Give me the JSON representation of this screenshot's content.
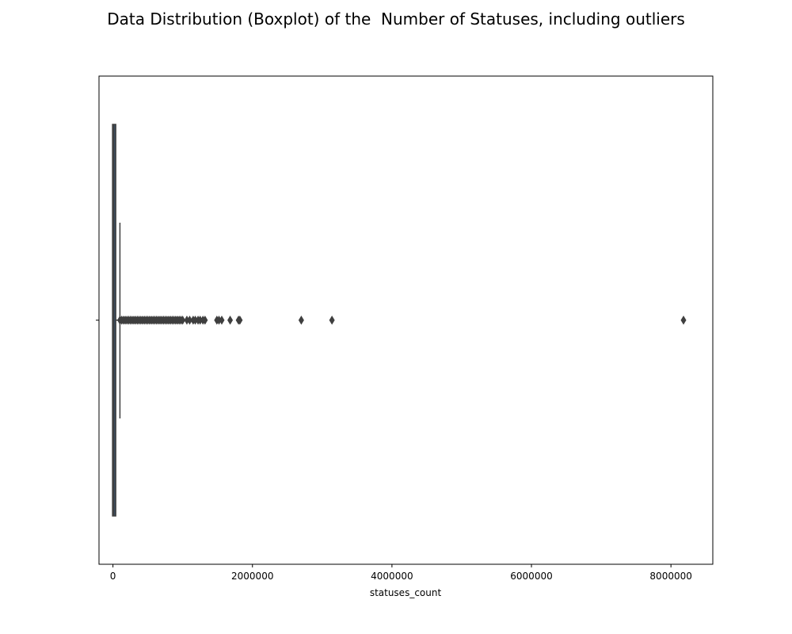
{
  "chart_data": {
    "type": "boxplot",
    "orientation": "horizontal",
    "title": "Data Distribution (Boxplot) of the  Number of Statuses, including outliers",
    "xlabel": "statuses_count",
    "ylabel": "",
    "xlim": [
      -200000,
      8600000
    ],
    "xticks": [
      0,
      2000000,
      4000000,
      6000000,
      8000000
    ],
    "xtick_labels": [
      "0",
      "2000000",
      "4000000",
      "6000000",
      "8000000"
    ],
    "grid": false,
    "legend": "none",
    "box": {
      "min": 0,
      "q1": 1000,
      "median": 10000,
      "q3": 40000,
      "whisker_low": 0,
      "whisker_high": 100000
    },
    "outliers_dense_range": [
      100000,
      1000000
    ],
    "outliers": [
      1060000,
      1100000,
      1150000,
      1180000,
      1220000,
      1250000,
      1290000,
      1320000,
      1490000,
      1520000,
      1560000,
      1680000,
      1800000,
      1820000,
      2700000,
      3140000,
      8180000
    ],
    "colors": {
      "box_fill": "#3a4f66",
      "edge": "#3f3f3f",
      "outlier": "#3f3f3f"
    }
  }
}
